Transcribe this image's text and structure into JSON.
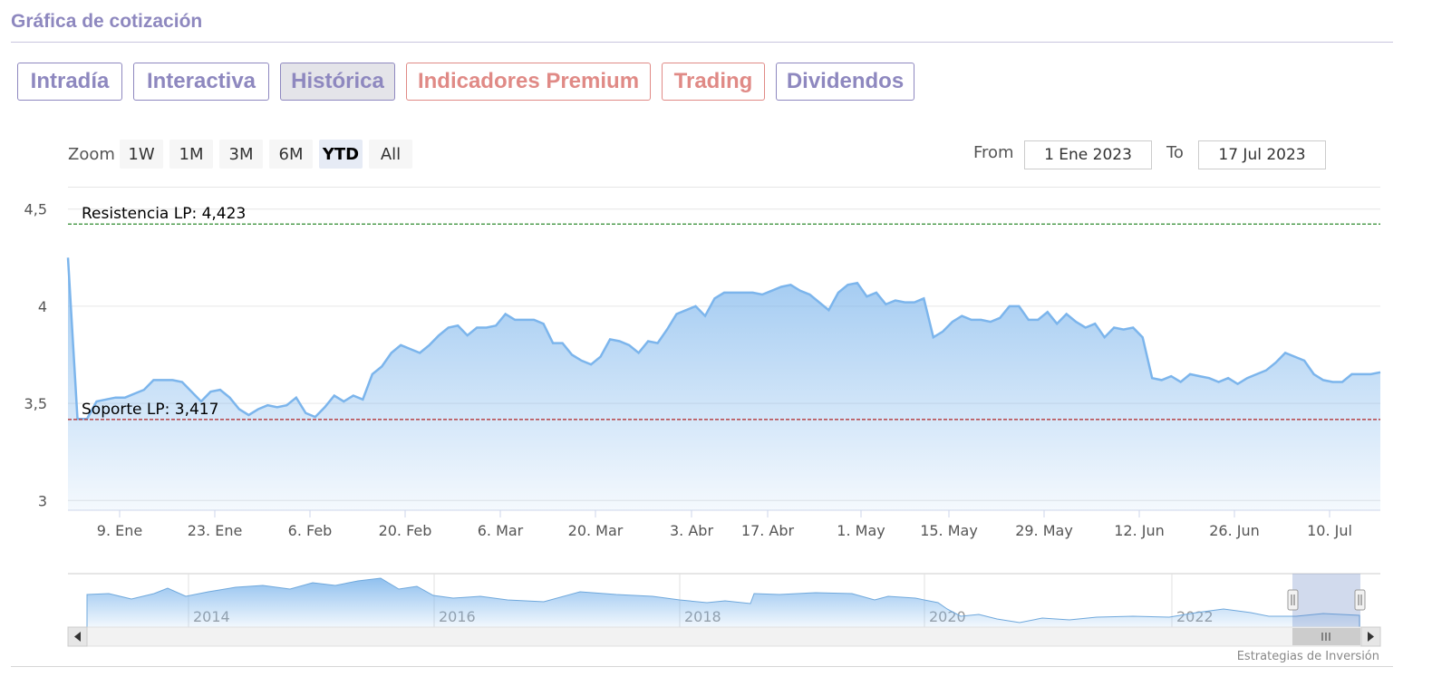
{
  "page_title": "Gráfica de cotización",
  "tabs": [
    {
      "label": "Intradía",
      "kind": "normal"
    },
    {
      "label": "Interactiva",
      "kind": "normal"
    },
    {
      "label": "Histórica",
      "kind": "active"
    },
    {
      "label": "Indicadores Premium",
      "kind": "premium"
    },
    {
      "label": "Trading",
      "kind": "premium"
    },
    {
      "label": "Dividendos",
      "kind": "normal"
    }
  ],
  "range_selector": {
    "zoom_label": "Zoom",
    "buttons": [
      "1W",
      "1M",
      "3M",
      "6M",
      "YTD",
      "All"
    ],
    "selected": "YTD",
    "from_label": "From",
    "from_value": "1 Ene 2023",
    "to_label": "To",
    "to_value": "17 Jul 2023"
  },
  "colors": {
    "brand": "#8e88bf",
    "premium": "#e08a86",
    "series_line": "#7cb5ec",
    "resistance": "#2e8b2e",
    "support": "#b22222"
  },
  "chart_data": {
    "type": "area",
    "x_ticks": [
      "9. Ene",
      "23. Ene",
      "6. Feb",
      "20. Feb",
      "6. Mar",
      "20. Mar",
      "3. Abr",
      "17. Abr",
      "1. May",
      "15. May",
      "29. May",
      "12. Jun",
      "26. Jun",
      "10. Jul"
    ],
    "y_ticks": [
      "3",
      "3,5",
      "4",
      "4,5"
    ],
    "ylim": [
      2.95,
      4.55
    ],
    "y_values": [
      4.25,
      3.42,
      3.42,
      3.51,
      3.52,
      3.53,
      3.53,
      3.55,
      3.57,
      3.62,
      3.62,
      3.62,
      3.61,
      3.56,
      3.51,
      3.56,
      3.57,
      3.53,
      3.47,
      3.44,
      3.47,
      3.49,
      3.48,
      3.49,
      3.53,
      3.45,
      3.43,
      3.48,
      3.54,
      3.51,
      3.54,
      3.52,
      3.65,
      3.69,
      3.76,
      3.8,
      3.78,
      3.76,
      3.8,
      3.85,
      3.89,
      3.9,
      3.85,
      3.89,
      3.89,
      3.9,
      3.96,
      3.93,
      3.93,
      3.93,
      3.91,
      3.81,
      3.81,
      3.75,
      3.72,
      3.7,
      3.74,
      3.83,
      3.82,
      3.8,
      3.76,
      3.82,
      3.81,
      3.88,
      3.96,
      3.98,
      4.0,
      3.95,
      4.04,
      4.07,
      4.07,
      4.07,
      4.07,
      4.06,
      4.08,
      4.1,
      4.11,
      4.08,
      4.06,
      4.02,
      3.98,
      4.07,
      4.11,
      4.12,
      4.05,
      4.07,
      4.01,
      4.03,
      4.02,
      4.02,
      4.04,
      3.84,
      3.87,
      3.92,
      3.95,
      3.93,
      3.93,
      3.92,
      3.94,
      4.0,
      4.0,
      3.93,
      3.93,
      3.97,
      3.91,
      3.96,
      3.92,
      3.89,
      3.91,
      3.84,
      3.89,
      3.88,
      3.89,
      3.84,
      3.63,
      3.62,
      3.64,
      3.61,
      3.65,
      3.64,
      3.63,
      3.61,
      3.63,
      3.6,
      3.63,
      3.65,
      3.67,
      3.71,
      3.76,
      3.74,
      3.72,
      3.65,
      3.62,
      3.61,
      3.61,
      3.65,
      3.65,
      3.65,
      3.66
    ],
    "annotations": [
      {
        "label": "Resistencia LP: 4,423",
        "value": 4.423,
        "style": "dashed",
        "color": "resistance"
      },
      {
        "label": "Soporte LP: 3,417",
        "value": 3.417,
        "style": "dashed",
        "color": "support"
      }
    ]
  },
  "navigator": {
    "year_labels": [
      "2014",
      "2016",
      "2018",
      "2020",
      "2022"
    ]
  },
  "credits": "Estrategias de Inversión"
}
